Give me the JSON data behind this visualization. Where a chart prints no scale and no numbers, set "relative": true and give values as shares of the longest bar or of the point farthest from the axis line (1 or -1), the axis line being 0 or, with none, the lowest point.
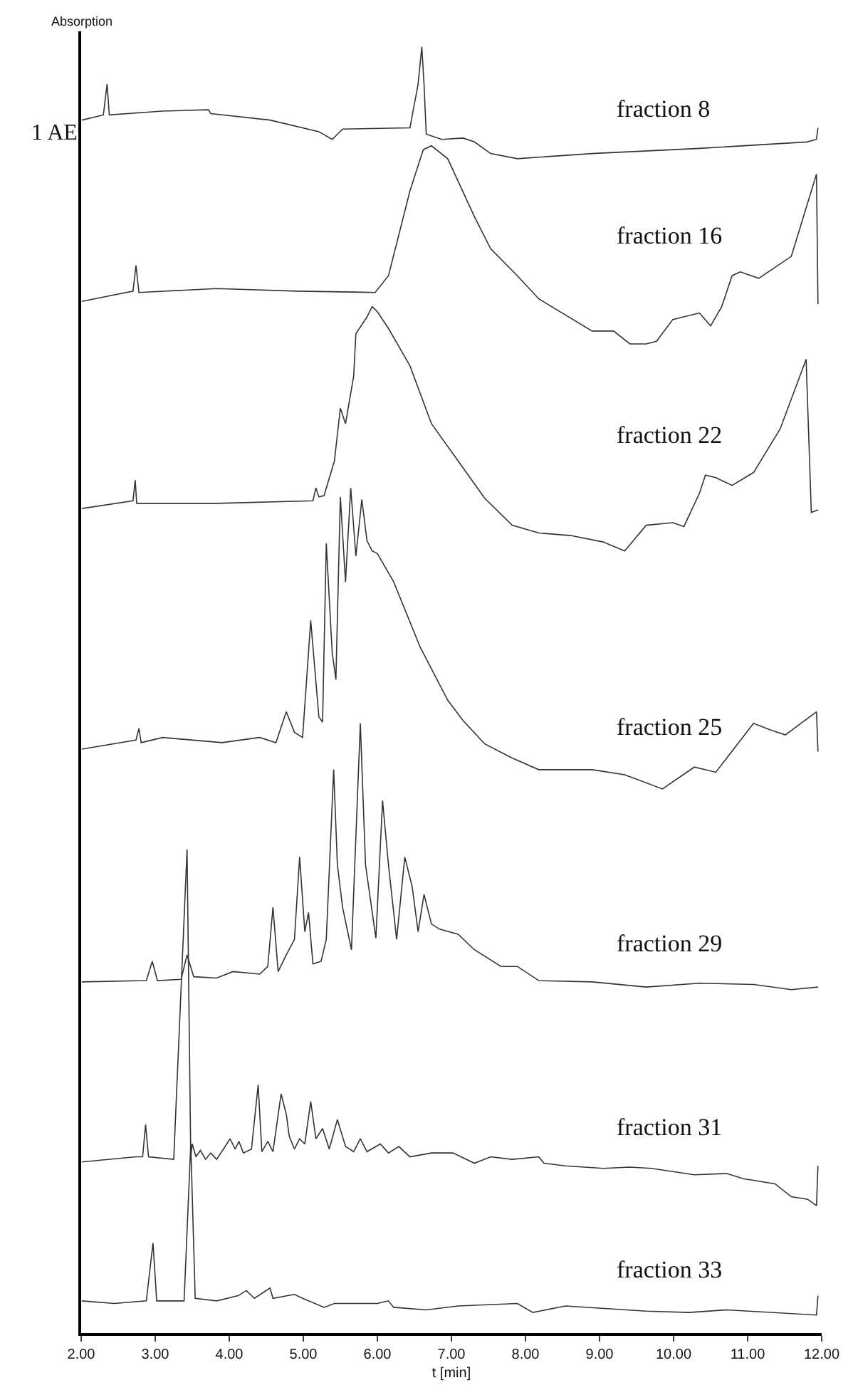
{
  "chart_data": {
    "type": "line",
    "relative": true,
    "xlabel": "t [min]",
    "ylabel": "Absorption",
    "annotations": [
      "1 AE"
    ],
    "legend": false,
    "grid": false,
    "marker": "none",
    "line_style": "solid",
    "xlim": [
      2,
      12
    ],
    "xticks": [
      {
        "value": 2,
        "label": "2.00"
      },
      {
        "value": 3,
        "label": "3.00"
      },
      {
        "value": 4,
        "label": "4.00"
      },
      {
        "value": 5,
        "label": "5.00"
      },
      {
        "value": 6,
        "label": "6.00"
      },
      {
        "value": 7,
        "label": "7.00"
      },
      {
        "value": 8,
        "label": "8.00"
      },
      {
        "value": 9,
        "label": "9.00"
      },
      {
        "value": 10,
        "label": "10.00"
      },
      {
        "value": 11,
        "label": "11.00"
      },
      {
        "value": 12,
        "label": "12.00"
      }
    ],
    "series": [
      {
        "name": "fraction 8",
        "color": "#333333",
        "x": [
          2.01,
          2.3,
          2.35,
          2.38,
          3.1,
          3.72,
          3.75,
          4.55,
          5.21,
          5.39,
          5.53,
          6.44,
          6.55,
          6.6,
          6.63,
          6.66,
          6.87,
          7.16,
          7.31,
          7.53,
          7.89,
          8.9,
          10.35,
          11.8,
          11.93,
          11.95
        ],
        "values": [
          0.943,
          0.947,
          0.971,
          0.947,
          0.95,
          0.951,
          0.948,
          0.943,
          0.934,
          0.928,
          0.936,
          0.937,
          0.971,
          1.0,
          0.971,
          0.932,
          0.928,
          0.929,
          0.926,
          0.917,
          0.913,
          0.917,
          0.921,
          0.926,
          0.928,
          0.937
        ]
      },
      {
        "name": "fraction 16",
        "color": "#333333",
        "x": [
          2.01,
          2.7,
          2.74,
          2.78,
          3.83,
          4.92,
          5.97,
          6.15,
          6.44,
          6.62,
          6.73,
          6.95,
          7.31,
          7.53,
          7.89,
          8.18,
          8.9,
          9.19,
          9.41,
          9.63,
          9.77,
          9.99,
          10.35,
          10.5,
          10.65,
          10.79,
          10.9,
          11.15,
          11.59,
          11.93,
          11.95
        ],
        "values": [
          0.802,
          0.81,
          0.83,
          0.809,
          0.812,
          0.81,
          0.809,
          0.822,
          0.888,
          0.92,
          0.923,
          0.913,
          0.868,
          0.843,
          0.822,
          0.804,
          0.779,
          0.779,
          0.769,
          0.769,
          0.771,
          0.788,
          0.793,
          0.783,
          0.798,
          0.822,
          0.825,
          0.82,
          0.837,
          0.901,
          0.8
        ]
      },
      {
        "name": "fraction 22",
        "color": "#333333",
        "x": [
          2.01,
          2.7,
          2.73,
          2.75,
          3.83,
          5.13,
          5.17,
          5.21,
          5.28,
          5.42,
          5.5,
          5.57,
          5.68,
          5.71,
          5.86,
          5.93,
          6.0,
          6.15,
          6.44,
          6.73,
          7.09,
          7.45,
          7.82,
          8.18,
          8.61,
          9.05,
          9.34,
          9.63,
          9.99,
          10.14,
          10.35,
          10.43,
          10.57,
          10.79,
          11.08,
          11.44,
          11.79,
          11.86,
          11.95
        ],
        "values": [
          0.641,
          0.647,
          0.663,
          0.645,
          0.645,
          0.647,
          0.657,
          0.65,
          0.651,
          0.678,
          0.719,
          0.707,
          0.744,
          0.777,
          0.79,
          0.798,
          0.794,
          0.781,
          0.752,
          0.707,
          0.678,
          0.649,
          0.628,
          0.622,
          0.62,
          0.615,
          0.608,
          0.628,
          0.63,
          0.627,
          0.653,
          0.667,
          0.665,
          0.659,
          0.669,
          0.703,
          0.757,
          0.638,
          0.64
        ]
      },
      {
        "name": "fraction 25",
        "color": "#333333",
        "x": [
          2.01,
          2.74,
          2.78,
          2.81,
          3.1,
          3.9,
          4.41,
          4.63,
          4.77,
          4.88,
          4.99,
          5.1,
          5.21,
          5.26,
          5.31,
          5.39,
          5.44,
          5.5,
          5.57,
          5.64,
          5.71,
          5.79,
          5.86,
          5.93,
          6.0,
          6.22,
          6.58,
          6.95,
          7.16,
          7.45,
          7.82,
          8.18,
          8.9,
          9.34,
          9.85,
          10.28,
          10.57,
          11.08,
          11.3,
          11.51,
          11.93,
          11.95
        ],
        "values": [
          0.454,
          0.461,
          0.47,
          0.459,
          0.463,
          0.459,
          0.463,
          0.459,
          0.483,
          0.467,
          0.463,
          0.554,
          0.479,
          0.475,
          0.614,
          0.529,
          0.508,
          0.65,
          0.584,
          0.657,
          0.604,
          0.648,
          0.616,
          0.608,
          0.606,
          0.584,
          0.533,
          0.492,
          0.476,
          0.458,
          0.447,
          0.438,
          0.438,
          0.434,
          0.423,
          0.44,
          0.436,
          0.474,
          0.469,
          0.465,
          0.483,
          0.452
        ]
      },
      {
        "name": "fraction 29",
        "color": "#333333",
        "x": [
          2.01,
          2.88,
          2.96,
          3.03,
          3.35,
          3.43,
          3.52,
          3.83,
          4.05,
          4.41,
          4.52,
          4.59,
          4.66,
          4.77,
          4.88,
          4.95,
          5.02,
          5.07,
          5.13,
          5.24,
          5.31,
          5.41,
          5.46,
          5.53,
          5.65,
          5.77,
          5.84,
          5.98,
          6.07,
          6.15,
          6.26,
          6.37,
          6.47,
          6.55,
          6.63,
          6.73,
          6.84,
          7.09,
          7.31,
          7.67,
          7.89,
          8.18,
          8.9,
          9.63,
          10.35,
          11.08,
          11.59,
          11.95
        ],
        "values": [
          0.273,
          0.274,
          0.289,
          0.274,
          0.275,
          0.294,
          0.277,
          0.276,
          0.281,
          0.279,
          0.285,
          0.331,
          0.281,
          0.294,
          0.306,
          0.37,
          0.312,
          0.327,
          0.287,
          0.289,
          0.306,
          0.438,
          0.364,
          0.331,
          0.298,
          0.474,
          0.364,
          0.307,
          0.414,
          0.364,
          0.306,
          0.37,
          0.347,
          0.312,
          0.341,
          0.318,
          0.314,
          0.31,
          0.298,
          0.285,
          0.285,
          0.274,
          0.273,
          0.269,
          0.272,
          0.271,
          0.267,
          0.269
        ]
      },
      {
        "name": "fraction 31",
        "color": "#333333",
        "x": [
          2.01,
          2.74,
          2.83,
          2.87,
          2.91,
          3.25,
          3.43,
          3.48,
          3.5,
          3.55,
          3.61,
          3.68,
          3.75,
          3.83,
          4.01,
          4.08,
          4.13,
          4.19,
          4.3,
          4.39,
          4.44,
          4.52,
          4.59,
          4.7,
          4.77,
          4.81,
          4.88,
          4.95,
          5.02,
          5.1,
          5.17,
          5.26,
          5.35,
          5.46,
          5.57,
          5.68,
          5.77,
          5.86,
          6.04,
          6.15,
          6.29,
          6.44,
          6.73,
          7.02,
          7.31,
          7.53,
          7.82,
          8.18,
          8.25,
          8.54,
          9.05,
          9.41,
          9.7,
          10.28,
          10.72,
          10.94,
          11.37,
          11.59,
          11.81,
          11.93,
          11.95
        ],
        "values": [
          0.133,
          0.137,
          0.137,
          0.162,
          0.137,
          0.135,
          0.376,
          0.137,
          0.147,
          0.137,
          0.142,
          0.135,
          0.14,
          0.135,
          0.151,
          0.143,
          0.149,
          0.14,
          0.143,
          0.193,
          0.141,
          0.149,
          0.141,
          0.186,
          0.17,
          0.153,
          0.143,
          0.151,
          0.147,
          0.18,
          0.151,
          0.159,
          0.143,
          0.166,
          0.145,
          0.141,
          0.151,
          0.141,
          0.147,
          0.14,
          0.145,
          0.137,
          0.14,
          0.14,
          0.132,
          0.137,
          0.135,
          0.137,
          0.132,
          0.13,
          0.128,
          0.129,
          0.128,
          0.123,
          0.124,
          0.12,
          0.116,
          0.106,
          0.104,
          0.099,
          0.13
        ]
      },
      {
        "name": "fraction 33",
        "color": "#333333",
        "x": [
          2.01,
          2.45,
          2.88,
          2.97,
          3.02,
          3.39,
          3.48,
          3.54,
          3.83,
          4.12,
          4.23,
          4.34,
          4.55,
          4.59,
          4.88,
          4.99,
          5.28,
          5.42,
          6.0,
          6.15,
          6.22,
          6.66,
          7.09,
          7.89,
          8.1,
          8.54,
          9.63,
          10.21,
          10.72,
          11.93,
          11.95
        ],
        "values": [
          0.025,
          0.023,
          0.025,
          0.07,
          0.025,
          0.025,
          0.147,
          0.027,
          0.025,
          0.029,
          0.033,
          0.027,
          0.035,
          0.027,
          0.03,
          0.027,
          0.02,
          0.023,
          0.023,
          0.025,
          0.02,
          0.018,
          0.021,
          0.023,
          0.016,
          0.021,
          0.017,
          0.016,
          0.018,
          0.014,
          0.029
        ]
      }
    ]
  }
}
